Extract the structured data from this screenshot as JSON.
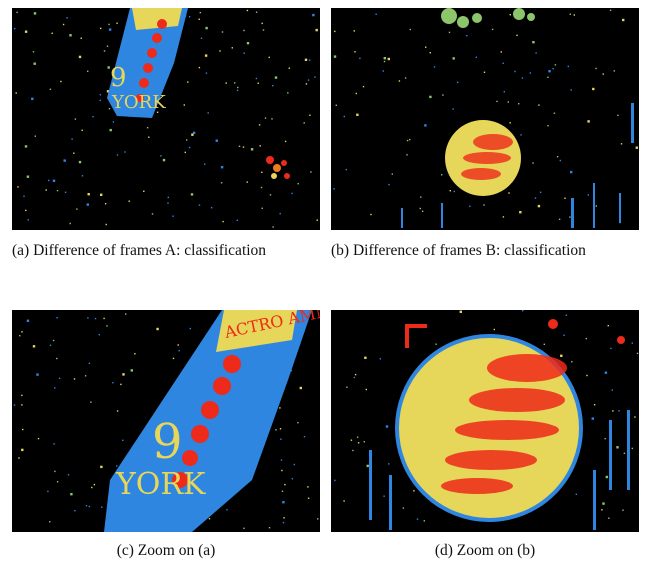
{
  "figure": {
    "panels": [
      {
        "id": "a",
        "caption": "(a) Difference of frames A: classification"
      },
      {
        "id": "b",
        "caption": "(b) Difference of frames B: classification"
      },
      {
        "id": "c",
        "caption": "(c) Zoom on (a)"
      },
      {
        "id": "d",
        "caption": "(d) Zoom on (b)"
      }
    ],
    "embedded_text": {
      "banner_a": "ACTRO AMMALITES",
      "number_a": "9",
      "letters_a": "YORK"
    }
  },
  "colors": {
    "background": "#000000",
    "blue": "#2f86e0",
    "yellow": "#e6d65a",
    "green": "#8cc56a",
    "red": "#ee2a1a",
    "orange": "#f07a1e"
  }
}
